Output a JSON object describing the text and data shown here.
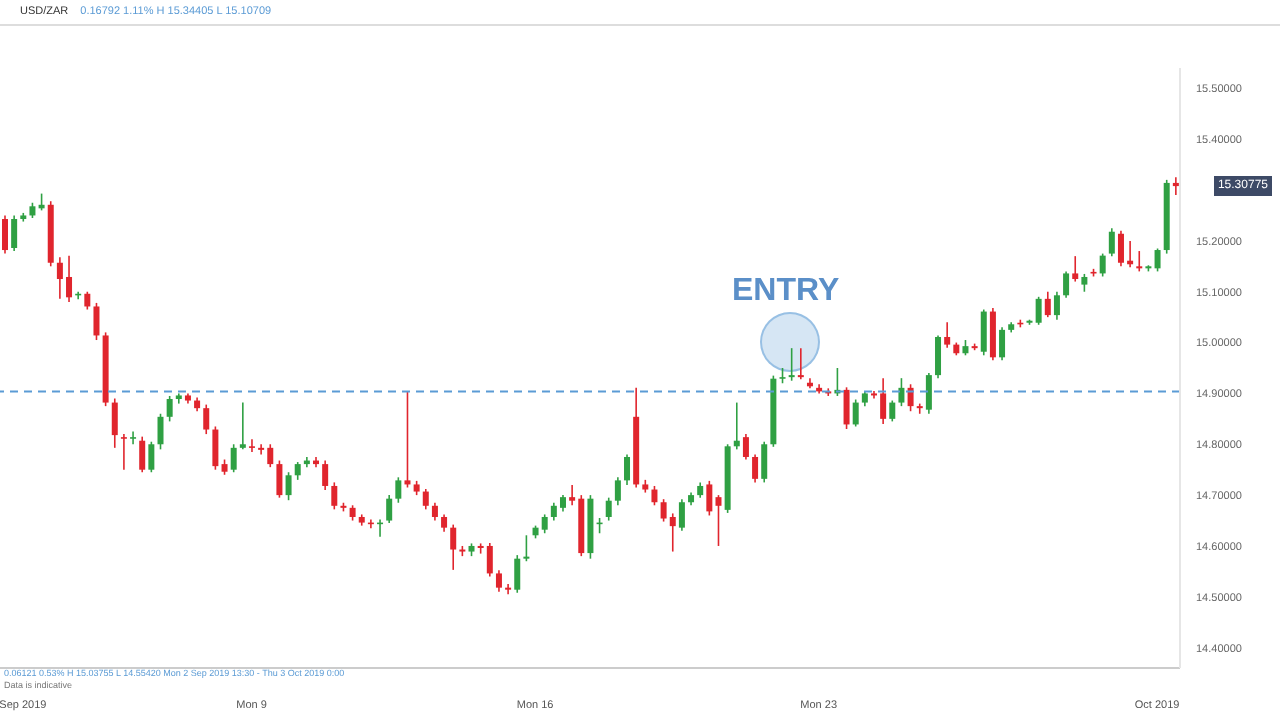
{
  "chart_data": {
    "type": "candlestick",
    "title": "USD/ZAR",
    "subtitle": "0.16792 1.11% H 15.34405 L 15.10709",
    "annotations": [
      "ENTRY",
      "0.06121 0.53% H 15.03755 L 14.55420 Mon 2 Sep 2019 13:30 - Thu 3 Oct 2019 0:00",
      "Data is indicative",
      "15.30775"
    ],
    "categories": [
      null,
      null,
      "Sep 2019",
      null,
      null,
      null,
      null,
      null,
      null,
      null,
      null,
      null,
      null,
      null,
      null,
      null,
      null,
      null,
      null,
      null,
      null,
      null,
      null,
      null,
      null,
      null,
      null,
      "Mon 9",
      null,
      null,
      null,
      null,
      null,
      null,
      null,
      null,
      null,
      null,
      null,
      null,
      null,
      null,
      null,
      null,
      null,
      null,
      null,
      null,
      null,
      null,
      null,
      null,
      null,
      null,
      null,
      null,
      null,
      null,
      "Mon 16",
      null,
      null,
      null,
      null,
      null,
      null,
      null,
      null,
      null,
      null,
      null,
      null,
      null,
      null,
      null,
      null,
      null,
      null,
      null,
      null,
      null,
      null,
      null,
      null,
      null,
      null,
      null,
      null,
      null,
      null,
      "Mon 23",
      null,
      null,
      null,
      null,
      null,
      null,
      null,
      null,
      null,
      null,
      null,
      null,
      null,
      null,
      null,
      null,
      null,
      null,
      null,
      null,
      null,
      null,
      null,
      null,
      null,
      null,
      null,
      null,
      null,
      null,
      null,
      null,
      null,
      null,
      null,
      null,
      "Oct 2019",
      null,
      null
    ],
    "colors": [
      "#e0252d",
      "#2fa043",
      "#2fa043",
      "#2fa043",
      "#2fa043",
      "#e0252d",
      "#e0252d",
      "#e0252d",
      "#2fa043",
      "#e0252d",
      "#e0252d",
      "#e0252d",
      "#e0252d",
      "#e0252d",
      "#2fa043",
      "#e0252d",
      "#2fa043",
      "#2fa043",
      "#2fa043",
      "#2fa043",
      "#e0252d",
      "#e0252d",
      "#e0252d",
      "#e0252d",
      "#e0252d",
      "#2fa043",
      "#2fa043",
      "#e0252d",
      "#e0252d",
      "#e0252d",
      "#e0252d",
      "#2fa043",
      "#2fa043",
      "#2fa043",
      "#e0252d",
      "#e0252d",
      "#e0252d",
      "#e0252d",
      "#e0252d",
      "#e0252d",
      "#e0252d",
      "#2fa043",
      "#2fa043",
      "#2fa043",
      "#e0252d",
      "#e0252d",
      "#e0252d",
      "#e0252d",
      "#e0252d",
      "#e0252d",
      "#e0252d",
      "#2fa043",
      "#e0252d",
      "#e0252d",
      "#e0252d",
      "#e0252d",
      "#2fa043",
      "#2fa043",
      "#2fa043",
      "#2fa043",
      "#2fa043",
      "#2fa043",
      "#e0252d",
      "#e0252d",
      "#2fa043",
      "#2fa043",
      "#2fa043",
      "#2fa043",
      "#2fa043",
      "#e0252d",
      "#e0252d",
      "#e0252d",
      "#e0252d",
      "#e0252d",
      "#2fa043",
      "#2fa043",
      "#2fa043",
      "#e0252d",
      "#e0252d",
      "#2fa043",
      "#2fa043",
      "#e0252d",
      "#e0252d",
      "#2fa043",
      "#2fa043",
      "#2fa043",
      "#2fa043",
      "#e0252d",
      "#e0252d",
      "#e0252d",
      "#e0252d",
      "#2fa043",
      "#e0252d",
      "#2fa043",
      "#2fa043",
      "#e0252d",
      "#e0252d",
      "#2fa043",
      "#2fa043",
      "#e0252d",
      "#e0252d",
      "#2fa043",
      "#2fa043",
      "#e0252d",
      "#e0252d",
      "#2fa043",
      "#e0252d",
      "#2fa043",
      "#e0252d",
      "#2fa043",
      "#2fa043",
      "#e0252d",
      "#2fa043",
      "#2fa043",
      "#e0252d",
      "#2fa043",
      "#2fa043",
      "#e0252d",
      "#2fa043",
      "#e0252d",
      "#2fa043",
      "#2fa043",
      "#e0252d",
      "#e0252d",
      "#e0252d",
      "#2fa043",
      "#2fa043",
      "#2fa043",
      "#e0252d"
    ],
    "ohlc": [
      [
        15.243,
        15.25,
        15.175,
        15.182
      ],
      [
        15.186,
        15.25,
        15.18,
        15.243
      ],
      [
        15.243,
        15.255,
        15.238,
        15.25
      ],
      [
        15.25,
        15.275,
        15.245,
        15.268
      ],
      [
        15.264,
        15.293,
        15.26,
        15.271
      ],
      [
        15.271,
        15.278,
        15.15,
        15.157
      ],
      [
        15.157,
        15.168,
        15.086,
        15.125
      ],
      [
        15.129,
        15.171,
        15.08,
        15.089
      ],
      [
        15.093,
        15.1,
        15.085,
        15.096
      ],
      [
        15.096,
        15.1,
        15.065,
        15.071
      ],
      [
        15.071,
        15.078,
        15.005,
        15.014
      ],
      [
        15.014,
        15.02,
        14.875,
        14.882
      ],
      [
        14.882,
        14.89,
        14.793,
        14.818
      ],
      [
        14.814,
        14.82,
        14.75,
        14.811
      ],
      [
        14.811,
        14.825,
        14.8,
        14.814
      ],
      [
        14.807,
        14.815,
        14.745,
        14.75
      ],
      [
        14.75,
        14.805,
        14.745,
        14.8
      ],
      [
        14.8,
        14.86,
        14.79,
        14.854
      ],
      [
        14.854,
        14.895,
        14.845,
        14.889
      ],
      [
        14.889,
        14.9,
        14.88,
        14.896
      ],
      [
        14.896,
        14.9,
        14.88,
        14.886
      ],
      [
        14.886,
        14.892,
        14.865,
        14.871
      ],
      [
        14.871,
        14.878,
        14.82,
        14.829
      ],
      [
        14.829,
        14.835,
        14.75,
        14.757
      ],
      [
        14.761,
        14.77,
        14.74,
        14.746
      ],
      [
        14.75,
        14.8,
        14.745,
        14.793
      ],
      [
        14.793,
        14.882,
        14.79,
        14.8
      ],
      [
        14.796,
        14.81,
        14.785,
        14.793
      ],
      [
        14.793,
        14.8,
        14.78,
        14.789
      ],
      [
        14.793,
        14.8,
        14.755,
        14.761
      ],
      [
        14.761,
        14.768,
        14.695,
        14.7
      ],
      [
        14.7,
        14.745,
        14.69,
        14.739
      ],
      [
        14.739,
        14.765,
        14.73,
        14.761
      ],
      [
        14.761,
        14.775,
        14.755,
        14.768
      ],
      [
        14.768,
        14.775,
        14.755,
        14.761
      ],
      [
        14.761,
        14.768,
        14.71,
        14.718
      ],
      [
        14.718,
        14.725,
        14.672,
        14.679
      ],
      [
        14.679,
        14.685,
        14.668,
        14.675
      ],
      [
        14.675,
        14.68,
        14.65,
        14.657
      ],
      [
        14.657,
        14.662,
        14.64,
        14.646
      ],
      [
        14.646,
        14.652,
        14.635,
        14.643
      ],
      [
        14.643,
        14.652,
        14.618,
        14.646
      ],
      [
        14.65,
        14.7,
        14.645,
        14.693
      ],
      [
        14.693,
        14.735,
        14.685,
        14.729
      ],
      [
        14.729,
        14.904,
        14.715,
        14.721
      ],
      [
        14.721,
        14.728,
        14.7,
        14.707
      ],
      [
        14.707,
        14.712,
        14.672,
        14.679
      ],
      [
        14.679,
        14.685,
        14.65,
        14.657
      ],
      [
        14.657,
        14.662,
        14.628,
        14.636
      ],
      [
        14.636,
        14.642,
        14.553,
        14.593
      ],
      [
        14.593,
        14.6,
        14.58,
        14.589
      ],
      [
        14.589,
        14.605,
        14.58,
        14.6
      ],
      [
        14.6,
        14.605,
        14.585,
        14.596
      ],
      [
        14.6,
        14.606,
        14.54,
        14.546
      ],
      [
        14.546,
        14.552,
        14.51,
        14.518
      ],
      [
        14.518,
        14.525,
        14.505,
        14.514
      ],
      [
        14.514,
        14.582,
        14.508,
        14.575
      ],
      [
        14.575,
        14.621,
        14.57,
        14.579
      ],
      [
        14.621,
        14.64,
        14.615,
        14.636
      ],
      [
        14.632,
        14.662,
        14.625,
        14.657
      ],
      [
        14.657,
        14.685,
        14.65,
        14.679
      ],
      [
        14.675,
        14.7,
        14.668,
        14.696
      ],
      [
        14.696,
        14.72,
        14.68,
        14.689
      ],
      [
        14.693,
        14.7,
        14.58,
        14.586
      ],
      [
        14.586,
        14.7,
        14.575,
        14.693
      ],
      [
        14.643,
        14.655,
        14.625,
        14.646
      ],
      [
        14.657,
        14.695,
        14.65,
        14.689
      ],
      [
        14.689,
        14.735,
        14.68,
        14.729
      ],
      [
        14.729,
        14.78,
        14.72,
        14.775
      ],
      [
        14.854,
        14.911,
        14.715,
        14.721
      ],
      [
        14.721,
        14.73,
        14.705,
        14.711
      ],
      [
        14.711,
        14.718,
        14.68,
        14.686
      ],
      [
        14.686,
        14.692,
        14.648,
        14.654
      ],
      [
        14.657,
        14.664,
        14.589,
        14.639
      ],
      [
        14.636,
        14.692,
        14.63,
        14.686
      ],
      [
        14.686,
        14.705,
        14.68,
        14.7
      ],
      [
        14.7,
        14.725,
        14.695,
        14.718
      ],
      [
        14.721,
        14.728,
        14.66,
        14.668
      ],
      [
        14.696,
        14.7,
        14.6,
        14.679
      ],
      [
        14.671,
        14.8,
        14.665,
        14.796
      ],
      [
        14.796,
        14.882,
        14.79,
        14.807
      ],
      [
        14.814,
        14.82,
        14.77,
        14.775
      ],
      [
        14.775,
        14.78,
        14.725,
        14.732
      ],
      [
        14.732,
        14.805,
        14.725,
        14.8
      ],
      [
        14.8,
        14.935,
        14.795,
        14.929
      ],
      [
        14.929,
        14.95,
        14.92,
        14.932
      ],
      [
        14.932,
        14.989,
        14.925,
        14.936
      ],
      [
        14.936,
        14.989,
        14.928,
        14.932
      ],
      [
        14.921,
        14.93,
        14.91,
        14.914
      ],
      [
        14.911,
        14.918,
        14.9,
        14.904
      ],
      [
        14.904,
        14.91,
        14.895,
        14.9
      ],
      [
        14.9,
        14.95,
        14.895,
        14.907
      ],
      [
        14.907,
        14.912,
        14.83,
        14.839
      ],
      [
        14.839,
        14.888,
        14.835,
        14.882
      ],
      [
        14.882,
        14.905,
        14.875,
        14.9
      ],
      [
        14.9,
        14.905,
        14.89,
        14.896
      ],
      [
        14.9,
        14.93,
        14.84,
        14.85
      ],
      [
        14.85,
        14.886,
        14.845,
        14.882
      ],
      [
        14.882,
        14.93,
        14.875,
        14.911
      ],
      [
        14.911,
        14.918,
        14.865,
        14.875
      ],
      [
        14.875,
        14.88,
        14.86,
        14.871
      ],
      [
        14.868,
        14.94,
        14.86,
        14.936
      ],
      [
        14.936,
        15.014,
        14.93,
        15.011
      ],
      [
        15.011,
        15.04,
        14.99,
        14.996
      ],
      [
        14.996,
        15.0,
        14.975,
        14.979
      ],
      [
        14.979,
        15.005,
        14.975,
        14.993
      ],
      [
        14.993,
        14.998,
        14.985,
        14.989
      ],
      [
        14.982,
        15.065,
        14.975,
        15.061
      ],
      [
        15.061,
        15.068,
        14.965,
        14.971
      ],
      [
        14.971,
        15.03,
        14.965,
        15.025
      ],
      [
        15.025,
        15.04,
        15.02,
        15.036
      ],
      [
        15.039,
        15.045,
        15.03,
        15.036
      ],
      [
        15.039,
        15.045,
        15.035,
        15.043
      ],
      [
        15.039,
        15.09,
        15.035,
        15.086
      ],
      [
        15.086,
        15.1,
        15.05,
        15.054
      ],
      [
        15.054,
        15.1,
        15.045,
        15.093
      ],
      [
        15.093,
        15.14,
        15.088,
        15.136
      ],
      [
        15.136,
        15.17,
        15.12,
        15.125
      ],
      [
        15.114,
        15.135,
        15.1,
        15.129
      ],
      [
        15.139,
        15.145,
        15.13,
        15.136
      ],
      [
        15.136,
        15.175,
        15.13,
        15.171
      ],
      [
        15.175,
        15.225,
        15.17,
        15.218
      ],
      [
        15.214,
        15.22,
        15.15,
        15.157
      ],
      [
        15.161,
        15.2,
        15.148,
        15.154
      ],
      [
        15.15,
        15.18,
        15.14,
        15.146
      ],
      [
        15.146,
        15.152,
        15.14,
        15.15
      ],
      [
        15.146,
        15.185,
        15.14,
        15.182
      ],
      [
        15.182,
        15.32,
        15.175,
        15.314
      ],
      [
        15.314,
        15.325,
        15.29,
        15.30775
      ]
    ],
    "ylim": [
      14.36,
      15.54
    ],
    "yticks": [
      {
        "value": 14.4,
        "label": "14.40000"
      },
      {
        "value": 14.5,
        "label": "14.50000"
      },
      {
        "value": 14.6,
        "label": "14.60000"
      },
      {
        "value": 14.7,
        "label": "14.70000"
      },
      {
        "value": 14.8,
        "label": "14.80000"
      },
      {
        "value": 14.9,
        "label": "14.90000"
      },
      {
        "value": 15.0,
        "label": "15.00000"
      },
      {
        "value": 15.1,
        "label": "15.10000"
      },
      {
        "value": 15.2,
        "label": "15.20000"
      },
      {
        "value": 15.4,
        "label": "15.40000"
      },
      {
        "value": 15.5,
        "label": "15.50000"
      }
    ],
    "ref_lines": [
      {
        "axis": "y",
        "value": 14.904,
        "color": "#5b9bd5",
        "line_style": "dashed"
      }
    ]
  }
}
